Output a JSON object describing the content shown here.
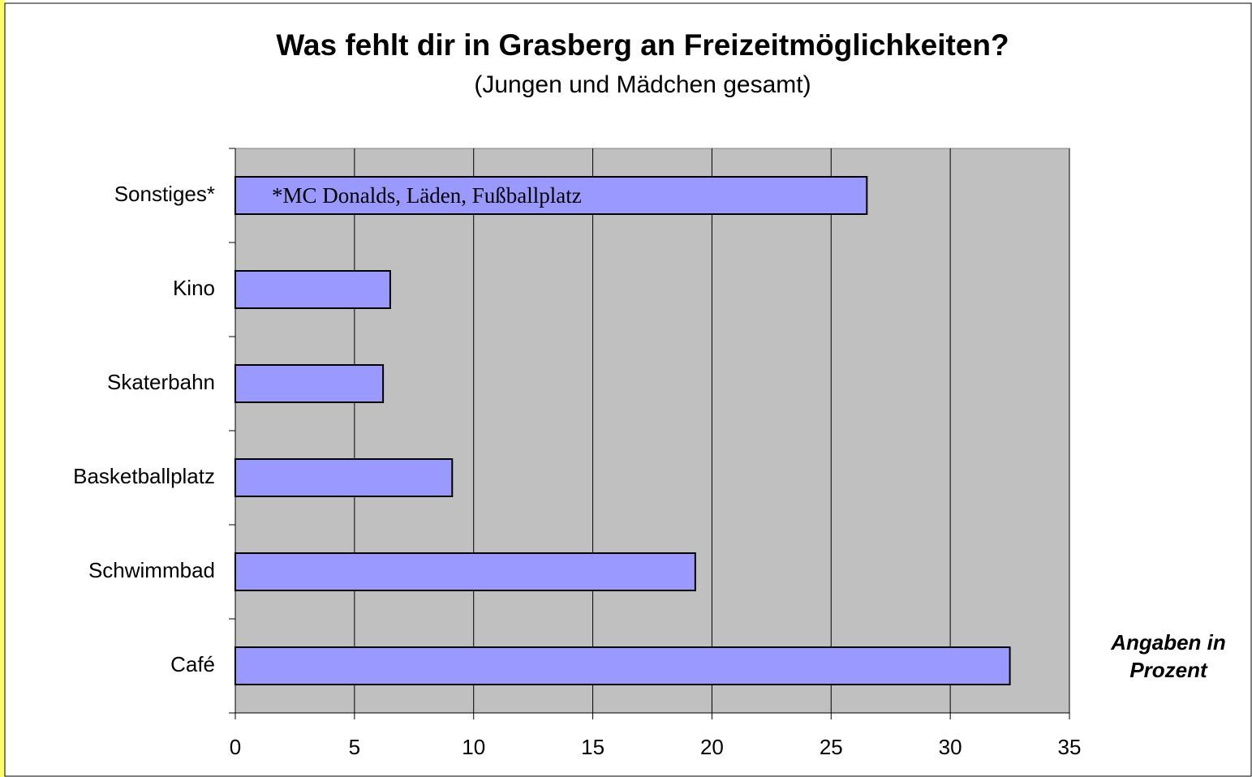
{
  "chart_data": {
    "type": "barh",
    "title": "Was fehlt dir in Grasberg an Freizeitmöglichkeiten?",
    "subtitle": "(Jungen und Mädchen gesamt)",
    "categories": [
      "Café",
      "Schwimmbad",
      "Basketballplatz",
      "Skaterbahn",
      "Kino",
      "Sonstiges*"
    ],
    "values": [
      32.5,
      19.3,
      9.1,
      6.2,
      6.5,
      26.5
    ],
    "color": "#9999ff",
    "xlim": [
      0,
      35
    ],
    "xticks": [
      0,
      5,
      10,
      15,
      20,
      25,
      30,
      35
    ],
    "grid": true,
    "annotation": "*MC Donalds, Läden, Fußballplatz",
    "axis_note": "Angaben in Prozent"
  }
}
